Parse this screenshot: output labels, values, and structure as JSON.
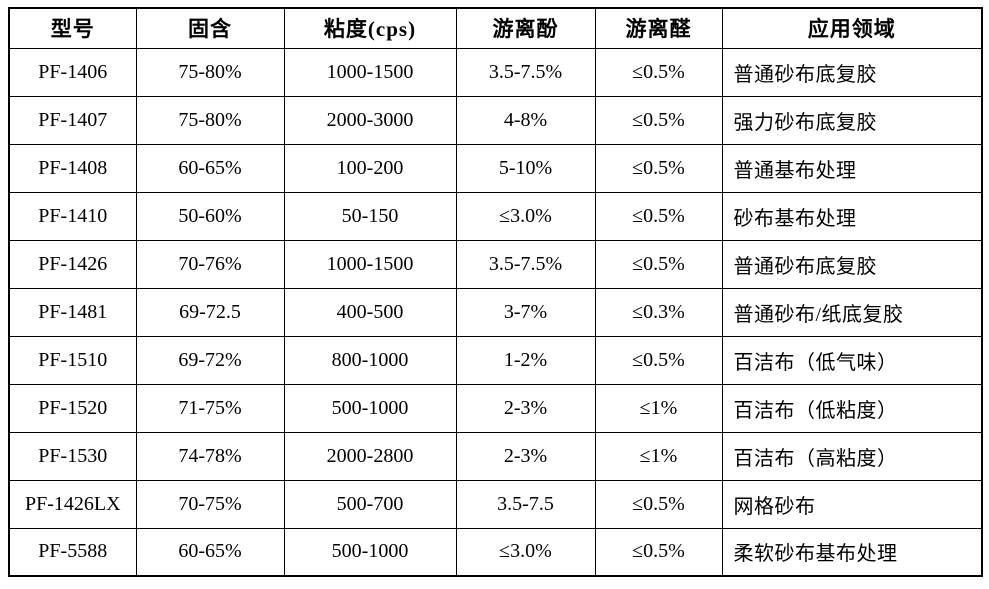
{
  "colors": {
    "border": "#000000",
    "text": "#000000",
    "background": "#ffffff"
  },
  "table": {
    "columns": [
      {
        "key": "model",
        "label": "型号"
      },
      {
        "key": "solid",
        "label": "固含"
      },
      {
        "key": "viscosity",
        "label": "粘度(cps)"
      },
      {
        "key": "phenol",
        "label": "游离酚"
      },
      {
        "key": "aldehyde",
        "label": "游离醛"
      },
      {
        "key": "application",
        "label": "应用领域"
      }
    ],
    "rows": [
      {
        "model": "PF-1406",
        "solid": "75-80%",
        "viscosity": "1000-1500",
        "phenol": "3.5-7.5%",
        "aldehyde": "≤0.5%",
        "application": "普通砂布底复胶"
      },
      {
        "model": "PF-1407",
        "solid": "75-80%",
        "viscosity": "2000-3000",
        "phenol": "4-8%",
        "aldehyde": "≤0.5%",
        "application": "强力砂布底复胶"
      },
      {
        "model": "PF-1408",
        "solid": "60-65%",
        "viscosity": "100-200",
        "phenol": "5-10%",
        "aldehyde": "≤0.5%",
        "application": "普通基布处理"
      },
      {
        "model": "PF-1410",
        "solid": "50-60%",
        "viscosity": "50-150",
        "phenol": "≤3.0%",
        "aldehyde": "≤0.5%",
        "application": "砂布基布处理"
      },
      {
        "model": "PF-1426",
        "solid": "70-76%",
        "viscosity": "1000-1500",
        "phenol": "3.5-7.5%",
        "aldehyde": "≤0.5%",
        "application": "普通砂布底复胶"
      },
      {
        "model": "PF-1481",
        "solid": "69-72.5",
        "viscosity": "400-500",
        "phenol": "3-7%",
        "aldehyde": "≤0.3%",
        "application": "普通砂布/纸底复胶"
      },
      {
        "model": "PF-1510",
        "solid": "69-72%",
        "viscosity": "800-1000",
        "phenol": "1-2%",
        "aldehyde": "≤0.5%",
        "application": "百洁布（低气味）"
      },
      {
        "model": "PF-1520",
        "solid": "71-75%",
        "viscosity": "500-1000",
        "phenol": "2-3%",
        "aldehyde": "≤1%",
        "application": "百洁布（低粘度）"
      },
      {
        "model": "PF-1530",
        "solid": "74-78%",
        "viscosity": "2000-2800",
        "phenol": "2-3%",
        "aldehyde": "≤1%",
        "application": "百洁布（高粘度）"
      },
      {
        "model": "PF-1426LX",
        "solid": "70-75%",
        "viscosity": "500-700",
        "phenol": "3.5-7.5",
        "aldehyde": "≤0.5%",
        "application": "网格砂布"
      },
      {
        "model": "PF-5588",
        "solid": "60-65%",
        "viscosity": "500-1000",
        "phenol": "≤3.0%",
        "aldehyde": "≤0.5%",
        "application": "柔软砂布基布处理"
      }
    ]
  }
}
